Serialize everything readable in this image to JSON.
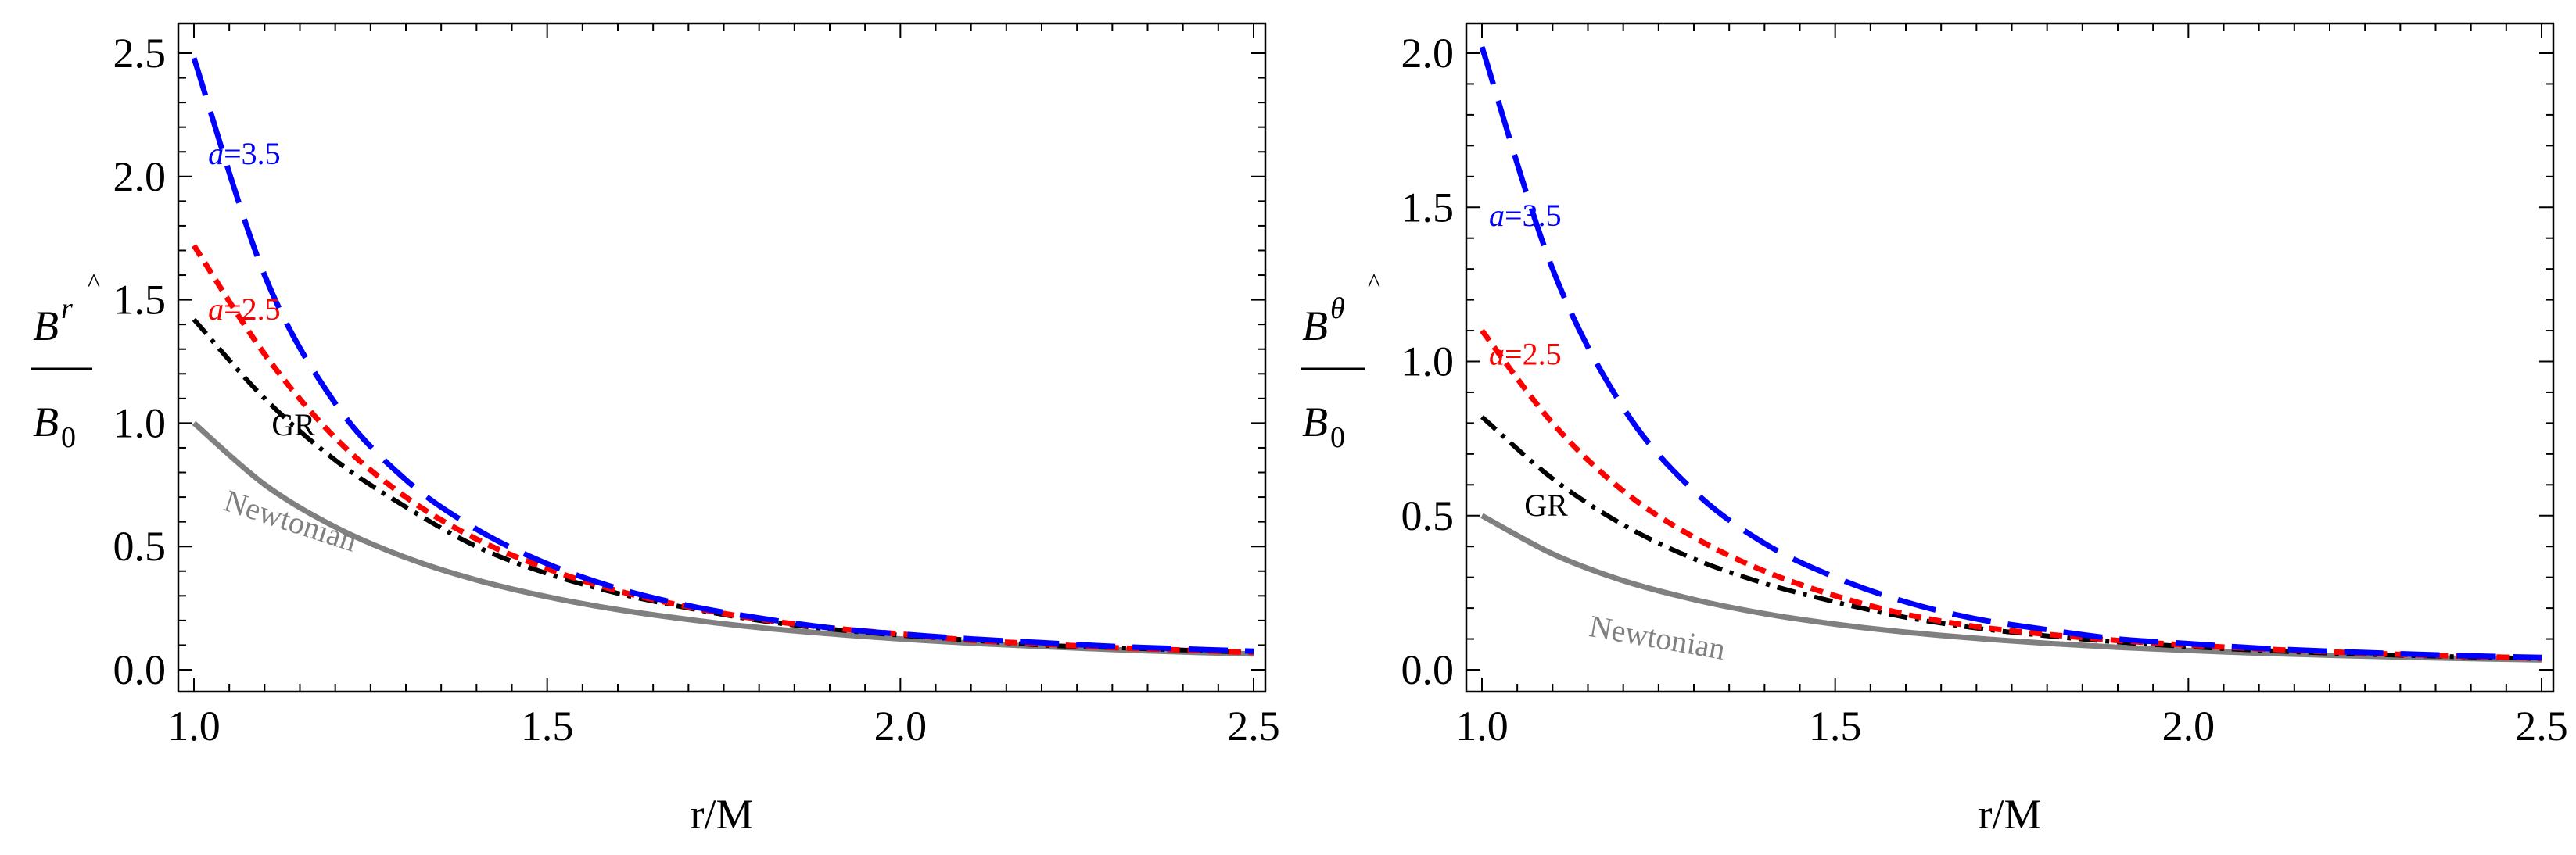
{
  "chart_data": [
    {
      "type": "line",
      "xlabel": "r/M",
      "ylabel": {
        "numerator": "B",
        "superscript": "r",
        "hat": "^",
        "denominator": "B",
        "subscript": "0"
      },
      "xlim": [
        1.0,
        2.5
      ],
      "ylim": [
        0.0,
        2.5
      ],
      "xticks": [
        "1.0",
        "1.5",
        "2.0",
        "2.5"
      ],
      "yticks": [
        "0.0",
        "0.5",
        "1.0",
        "1.5",
        "2.0",
        "2.5"
      ],
      "x": [
        1.0,
        1.1,
        1.2,
        1.3,
        1.4,
        1.5,
        1.6,
        1.7,
        1.8,
        1.9,
        2.0,
        2.1,
        2.2,
        2.3,
        2.4,
        2.5
      ],
      "series": [
        {
          "name": "a=3.5",
          "color": "#0000ff",
          "style": "dashed",
          "values": [
            2.48,
            1.6,
            1.08,
            0.77,
            0.57,
            0.43,
            0.33,
            0.26,
            0.21,
            0.17,
            0.145,
            0.125,
            0.11,
            0.095,
            0.085,
            0.075
          ]
        },
        {
          "name": "a=2.5",
          "color": "#ff0000",
          "style": "dotted",
          "values": [
            1.72,
            1.28,
            0.94,
            0.7,
            0.53,
            0.41,
            0.32,
            0.255,
            0.205,
            0.17,
            0.145,
            0.12,
            0.105,
            0.09,
            0.08,
            0.07
          ]
        },
        {
          "name": "GR",
          "color": "#000000",
          "style": "dashdot",
          "values": [
            1.42,
            1.1,
            0.85,
            0.66,
            0.5,
            0.39,
            0.31,
            0.25,
            0.2,
            0.165,
            0.14,
            0.12,
            0.1,
            0.09,
            0.08,
            0.07
          ]
        },
        {
          "name": "Newtonian",
          "color": "#808080",
          "style": "solid",
          "values": [
            1.0,
            0.751,
            0.579,
            0.455,
            0.364,
            0.296,
            0.244,
            0.204,
            0.171,
            0.146,
            0.125,
            0.108,
            0.094,
            0.082,
            0.072,
            0.064
          ]
        }
      ],
      "annotations": [
        {
          "italic": "a",
          "text": "=3.5",
          "color": "#0000ff"
        },
        {
          "italic": "a",
          "text": "=2.5",
          "color": "#ff0000"
        },
        {
          "italic": "",
          "text": "GR",
          "color": "#000000"
        },
        {
          "italic": "",
          "text": "Newtonian",
          "color": "#808080"
        }
      ]
    },
    {
      "type": "line",
      "xlabel": "r/M",
      "ylabel": {
        "numerator": "B",
        "superscript": "θ",
        "hat": "^",
        "denominator": "B",
        "subscript": "0"
      },
      "xlim": [
        1.0,
        2.5
      ],
      "ylim": [
        0.0,
        2.0
      ],
      "xticks": [
        "1.0",
        "1.5",
        "2.0",
        "2.5"
      ],
      "yticks": [
        "0.0",
        "0.5",
        "1.0",
        "1.5",
        "2.0"
      ],
      "x": [
        1.0,
        1.1,
        1.2,
        1.3,
        1.4,
        1.5,
        1.6,
        1.7,
        1.8,
        1.9,
        2.0,
        2.1,
        2.2,
        2.3,
        2.4,
        2.5
      ],
      "series": [
        {
          "name": "a=3.5",
          "color": "#0000ff",
          "style": "dashed",
          "values": [
            2.02,
            1.3,
            0.85,
            0.58,
            0.41,
            0.3,
            0.22,
            0.165,
            0.13,
            0.1,
            0.085,
            0.07,
            0.06,
            0.052,
            0.045,
            0.04
          ]
        },
        {
          "name": "a=2.5",
          "color": "#ff0000",
          "style": "dotted",
          "values": [
            1.1,
            0.8,
            0.58,
            0.43,
            0.32,
            0.24,
            0.18,
            0.14,
            0.115,
            0.095,
            0.08,
            0.068,
            0.058,
            0.05,
            0.043,
            0.038
          ]
        },
        {
          "name": "GR",
          "color": "#000000",
          "style": "dashdot",
          "values": [
            0.82,
            0.62,
            0.47,
            0.36,
            0.28,
            0.22,
            0.17,
            0.135,
            0.11,
            0.09,
            0.075,
            0.063,
            0.054,
            0.047,
            0.041,
            0.036
          ]
        },
        {
          "name": "Newtonian",
          "color": "#808080",
          "style": "solid",
          "values": [
            0.5,
            0.376,
            0.289,
            0.228,
            0.182,
            0.148,
            0.122,
            0.102,
            0.086,
            0.073,
            0.0625,
            0.054,
            0.047,
            0.041,
            0.036,
            0.032
          ]
        }
      ],
      "annotations": [
        {
          "italic": "a",
          "text": "=3.5",
          "color": "#0000ff"
        },
        {
          "italic": "a",
          "text": "=2.5",
          "color": "#ff0000"
        },
        {
          "italic": "",
          "text": "GR",
          "color": "#000000"
        },
        {
          "italic": "",
          "text": "Newtonian",
          "color": "#808080"
        }
      ]
    }
  ]
}
